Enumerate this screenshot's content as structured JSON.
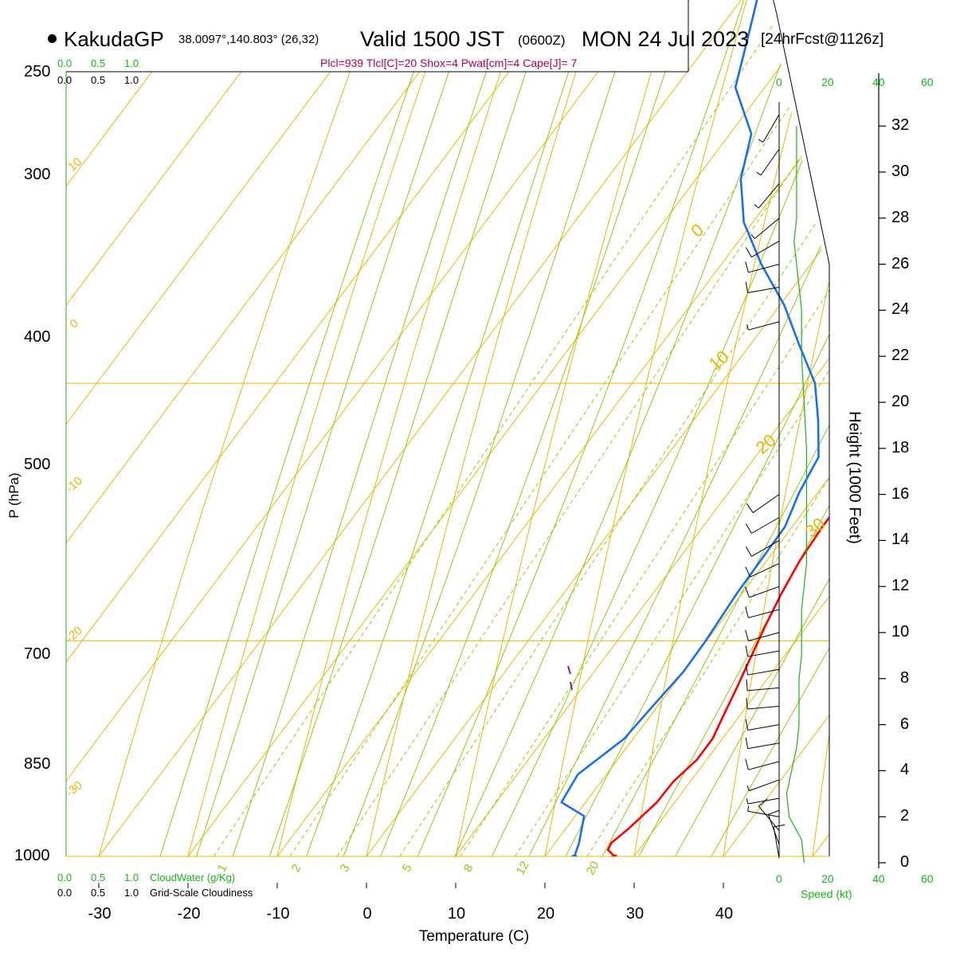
{
  "header": {
    "site": "KakudaGP",
    "coords": "38.0097°,140.803° (26,32)",
    "valid": "Valid 1500 JST",
    "utc": "(0600Z)",
    "date": "MON 24 Jul 2023",
    "forecast": "[24hrFcst@1126z]",
    "stats": "Plcl=939 Tlcl[C]=20 Shox=4 Pwat[cm]=4 Cape[J]= 7"
  },
  "cloud_scale": {
    "ticks": [
      "0.0",
      "0.5",
      "1.0"
    ],
    "ticks_bottom_black": [
      "0.0",
      "0.5",
      "1.0"
    ],
    "ticks_top_black": [
      "0.0",
      "0.5",
      "1.0"
    ],
    "cloudwater_label": "CloudWater (g/Kg)",
    "cloudiness_label": "Grid-Scale Cloudiness"
  },
  "wind_scale": {
    "ticks": [
      "0",
      "20",
      "40",
      "60"
    ],
    "label": "Speed (kt)"
  },
  "colors": {
    "temperature": "#ff0000",
    "dewpoint": "#1a6fe8",
    "isotherm": "#f0b400",
    "dry_adiabat": "#8ccc10",
    "mixing_ratio": "#8ccc10",
    "isobar": "#f0b400",
    "wind_speed": "#19b319",
    "header_stats": "#b0005a"
  },
  "chart_data": {
    "type": "skew-t",
    "title": "KakudaGP Valid 1500 JST (0600Z) MON 24 Jul 2023",
    "xlabel": "Temperature (C)",
    "ylabel": "P (hPa)",
    "y2label": "Height (1000 Feet)",
    "xlim": [
      -35,
      45
    ],
    "ylim": [
      1000,
      250
    ],
    "x_ticks": [
      -30,
      -20,
      -10,
      0,
      10,
      20,
      30,
      40
    ],
    "p_ticks": [
      1000,
      850,
      700,
      500,
      400,
      300,
      250
    ],
    "height_ticks": [
      0,
      2,
      4,
      6,
      8,
      10,
      12,
      14,
      16,
      18,
      20,
      22,
      24,
      26,
      28,
      30,
      32
    ],
    "isotherm_labels": [
      "-30",
      "-20",
      "-10",
      "0",
      "10",
      "20",
      "30"
    ],
    "mixing_ratio_labels": [
      "1",
      "2",
      "3",
      "5",
      "8",
      "12",
      "20"
    ],
    "series": [
      {
        "name": "Temperature",
        "p": [
          1000,
          995,
          990,
          980,
          960,
          945,
          930,
          915,
          900,
          880,
          860,
          840,
          820,
          800,
          780,
          760,
          740,
          720,
          705,
          690,
          670,
          640,
          620,
          600,
          560,
          520,
          480,
          440,
          400,
          370,
          340,
          320,
          300,
          285,
          270
        ],
        "t": [
          27.8,
          26.5,
          26.3,
          27.0,
          28.0,
          28.1,
          28.9,
          28.9,
          28.2,
          27.3,
          26.3,
          25.3,
          24.4,
          23.7,
          23.4,
          23.3,
          23.3,
          23.0,
          22.7,
          22.6,
          22.2,
          21.0,
          20.0,
          18.8,
          15.6,
          12.0,
          8.2,
          3.8,
          -1.0,
          -4.9,
          -9.5,
          -12.9,
          -16.6,
          -19.7,
          -23.0
        ]
      },
      {
        "name": "Dewpoint",
        "p": [
          1000,
          990,
          970,
          960,
          940,
          915,
          895,
          870,
          850,
          820,
          800,
          780,
          760,
          740,
          720,
          700,
          680,
          660,
          640,
          620,
          600,
          580,
          560,
          540,
          500,
          480,
          460,
          440,
          420,
          390,
          360,
          345,
          330,
          300,
          280,
          265
        ],
        "t": [
          23.3,
          22.7,
          21.0,
          17.3,
          16.8,
          19.0,
          19.4,
          20.0,
          19.9,
          19.4,
          19.3,
          19.2,
          17.9,
          17.1,
          14.0,
          10.5,
          5.5,
          0.5,
          -5.5,
          -11.0,
          -15.0,
          -17.6,
          -23.3,
          -26.0,
          -31.8,
          -35.2,
          -39.5,
          -43.0,
          -45.5,
          -48.5,
          -52.5,
          -50.5,
          -48.5,
          -50.3,
          -52.3,
          -55.0
        ]
      }
    ],
    "surface": {
      "p": 1000,
      "t": 27.8,
      "td": 23.3
    },
    "parcel_lcl": {
      "p": 939,
      "t": 20
    },
    "indices": {
      "Plcl": 939,
      "Tlcl_C": 20,
      "Shox": 4,
      "Pwat_cm": 4,
      "Cape_J": 7
    },
    "wind_speed_profile": {
      "height_kft": [
        0,
        1,
        2,
        3,
        4,
        5,
        6,
        7,
        8,
        9,
        10,
        11,
        12,
        13,
        14,
        16,
        18,
        20,
        22,
        24,
        26,
        27,
        28,
        30,
        32
      ],
      "speed_kt": [
        10,
        9,
        4,
        3,
        5,
        7,
        8,
        8,
        8,
        9,
        9,
        9,
        10,
        11,
        11,
        11,
        11,
        10,
        9,
        9,
        7,
        6,
        7,
        7,
        7
      ]
    },
    "wind_barbs": {
      "height_kft": [
        0.2,
        0.8,
        1.4,
        2.0,
        2.8,
        3.6,
        4.4,
        5.2,
        6.0,
        6.8,
        7.6,
        8.4,
        9.2,
        10.0,
        11.0,
        12.0,
        13.0,
        14.0,
        15.0,
        16.0,
        23.5,
        25.0,
        26.0,
        27.0,
        28.0,
        29.5,
        31.0,
        32.5
      ],
      "speed_kt": [
        10,
        10,
        10,
        5,
        5,
        5,
        10,
        10,
        10,
        10,
        10,
        10,
        10,
        10,
        10,
        10,
        10,
        10,
        10,
        10,
        5,
        10,
        10,
        10,
        5,
        5,
        5,
        5
      ],
      "dir_deg": [
        190,
        200,
        220,
        260,
        280,
        290,
        285,
        280,
        280,
        275,
        275,
        280,
        280,
        285,
        285,
        290,
        295,
        300,
        300,
        305,
        285,
        280,
        285,
        300,
        310,
        320,
        325,
        330
      ]
    }
  }
}
